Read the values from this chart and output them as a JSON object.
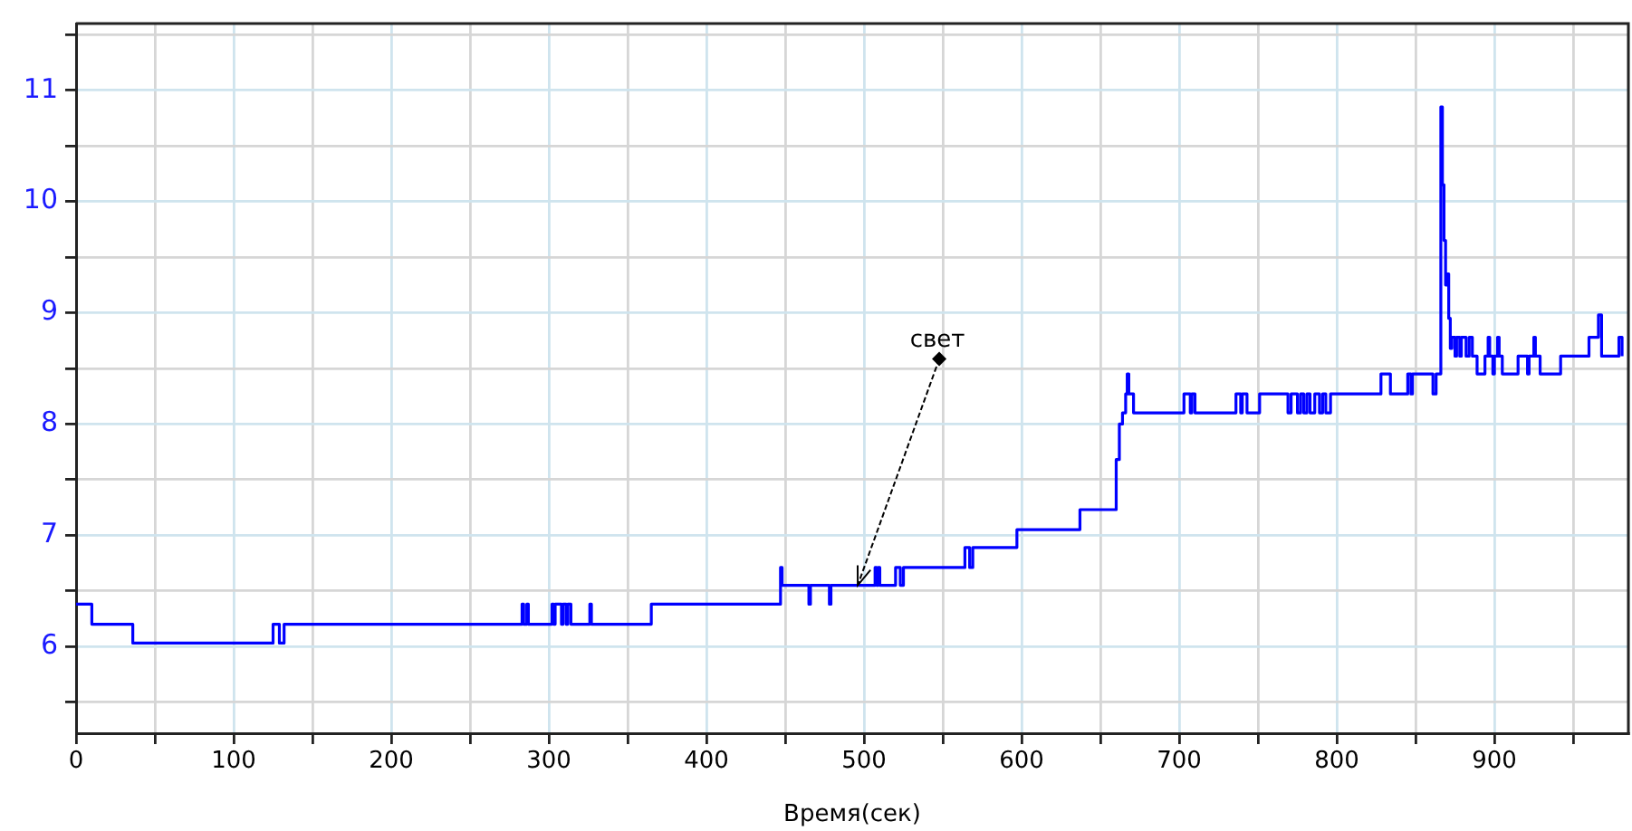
{
  "chart_data": {
    "type": "step",
    "xlabel": "Время(сек)",
    "color": "#0000ff",
    "x": [
      0,
      10,
      36,
      125,
      129,
      132,
      283,
      284,
      286,
      287,
      302,
      303,
      304,
      308,
      309,
      311,
      312,
      314,
      326,
      327,
      365,
      447,
      448,
      465,
      466,
      478,
      479,
      507,
      508,
      509,
      510,
      520,
      523,
      525,
      564,
      567,
      569,
      597,
      637,
      660,
      662,
      664,
      666,
      667,
      668,
      671,
      703,
      707,
      708,
      710,
      736,
      739,
      740,
      743,
      751,
      769,
      771,
      775,
      777,
      779,
      781,
      783,
      786,
      789,
      791,
      793,
      796,
      828,
      834,
      845,
      847,
      848,
      861,
      863,
      866,
      867,
      868,
      869,
      870,
      871,
      872,
      873,
      875,
      876,
      878,
      879,
      882,
      884,
      886,
      889,
      894,
      896,
      897,
      899,
      900,
      902,
      903,
      905,
      915,
      921,
      922,
      925,
      926,
      929,
      942,
      960,
      966,
      968,
      979,
      981
    ],
    "values": [
      6.38,
      6.2,
      6.03,
      6.2,
      6.03,
      6.2,
      6.38,
      6.2,
      6.38,
      6.2,
      6.38,
      6.2,
      6.38,
      6.2,
      6.38,
      6.2,
      6.38,
      6.2,
      6.38,
      6.2,
      6.38,
      6.71,
      6.55,
      6.38,
      6.55,
      6.38,
      6.55,
      6.71,
      6.55,
      6.71,
      6.55,
      6.71,
      6.55,
      6.71,
      6.89,
      6.71,
      6.89,
      7.05,
      7.23,
      7.68,
      8.0,
      8.1,
      8.27,
      8.45,
      8.27,
      8.1,
      8.27,
      8.1,
      8.27,
      8.1,
      8.27,
      8.1,
      8.27,
      8.1,
      8.27,
      8.1,
      8.27,
      8.1,
      8.27,
      8.1,
      8.27,
      8.1,
      8.27,
      8.1,
      8.27,
      8.1,
      8.27,
      8.45,
      8.27,
      8.45,
      8.27,
      8.45,
      8.27,
      8.45,
      10.85,
      10.15,
      9.65,
      9.25,
      9.35,
      8.95,
      8.68,
      8.78,
      8.61,
      8.78,
      8.61,
      8.78,
      8.61,
      8.78,
      8.61,
      8.45,
      8.61,
      8.78,
      8.61,
      8.45,
      8.61,
      8.78,
      8.61,
      8.45,
      8.61,
      8.45,
      8.61,
      8.78,
      8.61,
      8.45,
      8.61,
      8.78,
      8.98,
      8.61,
      8.78,
      8.61
    ],
    "xlim": [
      0,
      985
    ],
    "ylim": [
      5.22,
      11.6
    ],
    "xticks": [
      0,
      {
        "value": 50,
        "label": null
      },
      100,
      {
        "value": 150,
        "label": null
      },
      200,
      {
        "value": 250,
        "label": null
      },
      300,
      {
        "value": 350,
        "label": null
      },
      400,
      {
        "value": 450,
        "label": null
      },
      500,
      {
        "value": 550,
        "label": null
      },
      600,
      {
        "value": 650,
        "label": null
      },
      700,
      {
        "value": 750,
        "label": null
      },
      800,
      {
        "value": 850,
        "label": null
      },
      900,
      {
        "value": 950,
        "label": null
      }
    ],
    "yticks": [
      {
        "value": 5.5,
        "label": null
      },
      6,
      {
        "value": 6.5,
        "label": null
      },
      7,
      {
        "value": 7.5,
        "label": null
      },
      8,
      {
        "value": 8.5,
        "label": null
      },
      9,
      {
        "value": 9.5,
        "label": null
      },
      10,
      {
        "value": 10.5,
        "label": null
      },
      11,
      {
        "value": 11.5,
        "label": null
      }
    ],
    "grid": true,
    "annotations": [
      {
        "text": "свет",
        "x": 496,
        "y": 6.55
      }
    ]
  }
}
